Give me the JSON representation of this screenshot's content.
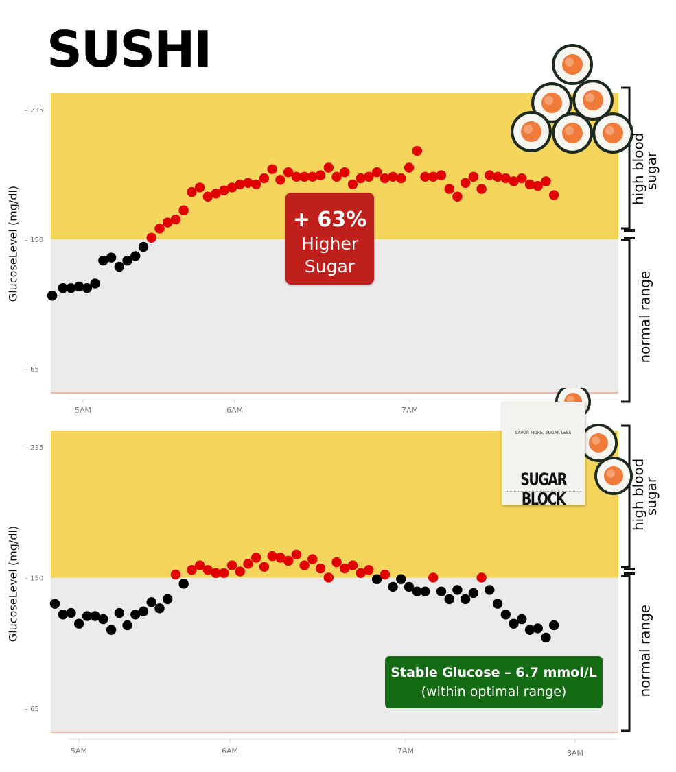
{
  "title": "SUSHI",
  "colors": {
    "high_zone": "#f5d55c",
    "normal_zone": "#ebebeb",
    "dot_high": "#e00000",
    "dot_normal": "#000000",
    "badge_red": "#c0201c",
    "badge_green": "#146b14",
    "baseline": "#f0a090"
  },
  "top_badge": {
    "line1": "+ 63%",
    "line2": "Higher",
    "line3": "Sugar"
  },
  "bottom_badge": {
    "line1": "Stable Glucose – 6.7 mmol/L",
    "line2": "(within optimal range)"
  },
  "product": {
    "tagline": "SAVOR MORE, SUGAR LESS",
    "brand": "SUGAR BLOCK"
  },
  "bracket_labels": {
    "high": [
      "high blood",
      "sugar"
    ],
    "normal": "normal range"
  },
  "images": {
    "sushi": "sushi-roll-pile",
    "product": "sugar-block-box"
  },
  "chart_data": [
    {
      "type": "scatter",
      "title": "",
      "xlabel": "",
      "ylabel": "GlucoseLevel (mg/dl)",
      "x_ticks": [
        "5AM",
        "6AM",
        "7AM"
      ],
      "y_ticks": [
        235,
        150,
        65
      ],
      "ylim": [
        50,
        245
      ],
      "xlim": [
        "4:50",
        "8:20"
      ],
      "high_threshold": 150,
      "grid": false,
      "series": [
        {
          "values": [
            [
              "4:49",
              113
            ],
            [
              "4:53",
              118
            ],
            [
              "4:56",
              118
            ],
            [
              "4:59",
              119
            ],
            [
              "5:02",
              118
            ],
            [
              "5:05",
              121
            ],
            [
              "5:08",
              136
            ],
            [
              "5:11",
              138
            ],
            [
              "5:14",
              132
            ],
            [
              "5:17",
              136
            ],
            [
              "5:20",
              139
            ],
            [
              "5:23",
              145
            ],
            [
              "5:26",
              151
            ],
            [
              "5:29",
              157
            ],
            [
              "5:32",
              161
            ],
            [
              "5:35",
              163
            ],
            [
              "5:38",
              169
            ],
            [
              "5:41",
              181
            ],
            [
              "5:44",
              184
            ],
            [
              "5:47",
              178
            ],
            [
              "5:50",
              180
            ],
            [
              "5:53",
              182
            ],
            [
              "5:56",
              184
            ],
            [
              "5:59",
              186
            ],
            [
              "6:02",
              187
            ],
            [
              "6:05",
              186
            ],
            [
              "6:08",
              190
            ],
            [
              "6:11",
              196
            ],
            [
              "6:14",
              189
            ],
            [
              "6:17",
              194
            ],
            [
              "6:20",
              191
            ],
            [
              "6:23",
              191
            ],
            [
              "6:26",
              191
            ],
            [
              "6:29",
              192
            ],
            [
              "6:32",
              197
            ],
            [
              "6:35",
              191
            ],
            [
              "6:38",
              194
            ],
            [
              "6:41",
              186
            ],
            [
              "6:44",
              190
            ],
            [
              "6:47",
              191
            ],
            [
              "6:50",
              194
            ],
            [
              "6:53",
              190
            ],
            [
              "6:56",
              191
            ],
            [
              "6:59",
              190
            ],
            [
              "7:02",
              197
            ],
            [
              "7:05",
              208
            ],
            [
              "7:08",
              191
            ],
            [
              "7:11",
              191
            ],
            [
              "7:14",
              192
            ],
            [
              "7:17",
              183
            ],
            [
              "7:20",
              178
            ],
            [
              "7:23",
              187
            ],
            [
              "7:26",
              191
            ],
            [
              "7:29",
              183
            ],
            [
              "7:32",
              192
            ],
            [
              "7:35",
              191
            ],
            [
              "7:38",
              190
            ],
            [
              "7:41",
              188
            ],
            [
              "7:44",
              190
            ],
            [
              "7:47",
              186
            ],
            [
              "7:50",
              185
            ],
            [
              "7:53",
              188
            ],
            [
              "7:56",
              179
            ]
          ]
        }
      ]
    },
    {
      "type": "scatter",
      "title": "",
      "xlabel": "",
      "ylabel": "GlucoseLevel (mg/dl)",
      "x_ticks": [
        "5AM",
        "6AM",
        "7AM",
        "8AM"
      ],
      "y_ticks": [
        235,
        150,
        65
      ],
      "ylim": [
        50,
        245
      ],
      "xlim": [
        "4:50",
        "8:20"
      ],
      "high_threshold": 150,
      "grid": false,
      "series": [
        {
          "values": [
            [
              "4:50",
              133
            ],
            [
              "4:53",
              126
            ],
            [
              "4:56",
              127
            ],
            [
              "4:59",
              120
            ],
            [
              "5:02",
              125
            ],
            [
              "5:05",
              125
            ],
            [
              "5:08",
              123
            ],
            [
              "5:11",
              116
            ],
            [
              "5:14",
              127
            ],
            [
              "5:17",
              119
            ],
            [
              "5:20",
              126
            ],
            [
              "5:23",
              128
            ],
            [
              "5:26",
              134
            ],
            [
              "5:29",
              130
            ],
            [
              "5:32",
              136
            ],
            [
              "5:35",
              152
            ],
            [
              "5:38",
              146
            ],
            [
              "5:41",
              155
            ],
            [
              "5:44",
              158
            ],
            [
              "5:47",
              155
            ],
            [
              "5:50",
              153
            ],
            [
              "5:53",
              153
            ],
            [
              "5:56",
              158
            ],
            [
              "5:59",
              154
            ],
            [
              "6:02",
              159
            ],
            [
              "6:05",
              163
            ],
            [
              "6:08",
              157
            ],
            [
              "6:11",
              164
            ],
            [
              "6:14",
              163
            ],
            [
              "6:17",
              161
            ],
            [
              "6:20",
              165
            ],
            [
              "6:23",
              158
            ],
            [
              "6:26",
              162
            ],
            [
              "6:29",
              156
            ],
            [
              "6:32",
              150
            ],
            [
              "6:35",
              160
            ],
            [
              "6:38",
              156
            ],
            [
              "6:41",
              158
            ],
            [
              "6:44",
              153
            ],
            [
              "6:47",
              155
            ],
            [
              "6:50",
              149
            ],
            [
              "6:53",
              152
            ],
            [
              "6:56",
              144
            ],
            [
              "6:59",
              149
            ],
            [
              "7:02",
              144
            ],
            [
              "7:05",
              141
            ],
            [
              "7:08",
              141
            ],
            [
              "7:11",
              150
            ],
            [
              "7:14",
              141
            ],
            [
              "7:17",
              136
            ],
            [
              "7:20",
              142
            ],
            [
              "7:23",
              136
            ],
            [
              "7:26",
              140
            ],
            [
              "7:29",
              150
            ],
            [
              "7:32",
              142
            ],
            [
              "7:35",
              133
            ],
            [
              "7:38",
              126
            ],
            [
              "7:41",
              120
            ],
            [
              "7:44",
              123
            ],
            [
              "7:47",
              116
            ],
            [
              "7:50",
              117
            ],
            [
              "7:53",
              111
            ],
            [
              "7:56",
              119
            ]
          ]
        }
      ]
    }
  ]
}
